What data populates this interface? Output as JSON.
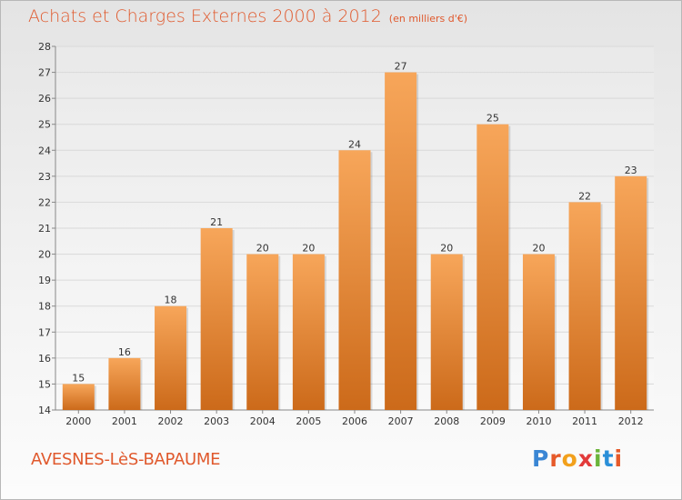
{
  "chart_data": {
    "type": "bar",
    "title": "Achats et Charges Externes 2000 à 2012",
    "subtitle": "(en milliers d'€)",
    "categories": [
      "2000",
      "2001",
      "2002",
      "2003",
      "2004",
      "2005",
      "2006",
      "2007",
      "2008",
      "2009",
      "2010",
      "2011",
      "2012"
    ],
    "values": [
      15,
      16,
      18,
      21,
      20,
      20,
      24,
      27,
      20,
      25,
      20,
      22,
      23
    ],
    "ylim": [
      14,
      28
    ],
    "yticks": [
      14,
      15,
      16,
      17,
      18,
      19,
      20,
      21,
      22,
      23,
      24,
      25,
      26,
      27,
      28
    ],
    "grid": true,
    "data_labels": true,
    "bar_color_top": "#f7a65a",
    "bar_color_bottom": "#cc6a1a"
  },
  "footer": {
    "city": "AVESNES-LèS-BAPAUME",
    "brand": "Proxiti",
    "brand_colors": [
      "#3a86d4",
      "#e65a2a",
      "#f2a01c",
      "#e23a3a",
      "#6bb43a",
      "#2a8fd8",
      "#e65a2a"
    ]
  },
  "colors": {
    "title": "#e0592d",
    "grid": "#d9d9d9"
  }
}
